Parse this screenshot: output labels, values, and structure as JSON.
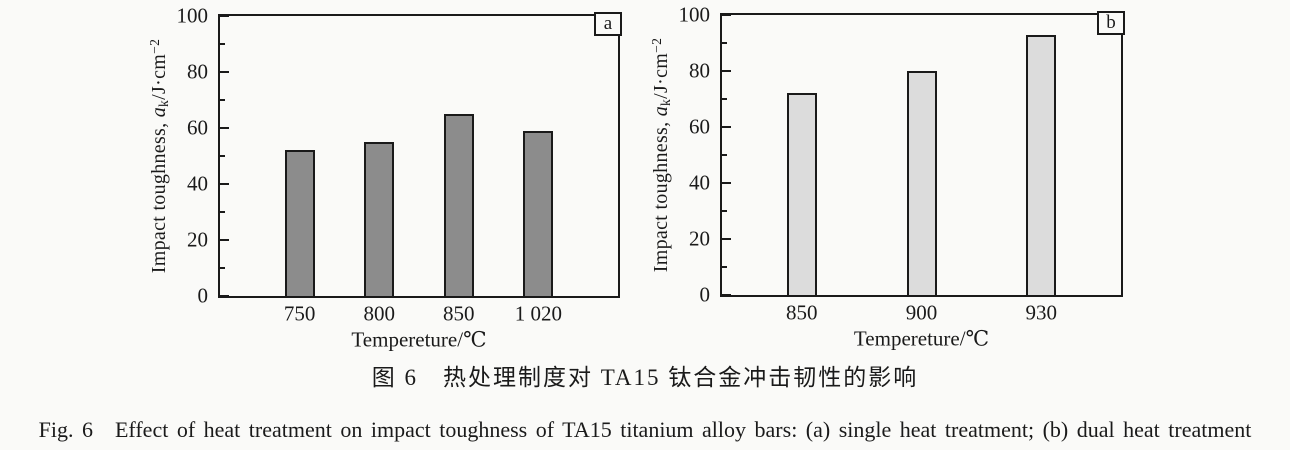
{
  "figure": {
    "caption_zh": "图 6　热处理制度对 TA15 钛合金冲击韧性的影响",
    "caption_en": "Fig. 6　Effect of heat treatment on impact toughness of TA15 titanium alloy bars: (a) single heat treatment; (b) dual heat treatment"
  },
  "colors": {
    "axis": "#1a1a1a",
    "background": "#fafaf8",
    "panel_a_bar": "#8c8c8c",
    "panel_b_bar": "#dcdcdc"
  },
  "chart_data": [
    {
      "type": "bar",
      "panel_label": "a",
      "title": "",
      "categories": [
        "750",
        "800",
        "850",
        "1 020"
      ],
      "values": [
        52,
        55,
        65,
        59
      ],
      "bar_color": "#8c8c8c",
      "xlabel": "Tempereture/℃",
      "ylabel": {
        "prefix": "Impact toughness, ",
        "italic_var": "a",
        "subscript": "k",
        "unit": "/J·cm",
        "superscript": "−2"
      },
      "ylim": [
        0,
        100
      ],
      "yticks_major": [
        0,
        20,
        40,
        60,
        80,
        100
      ],
      "yticks_minor": [
        10,
        30,
        50,
        70,
        90
      ],
      "grid": false,
      "legend": "none"
    },
    {
      "type": "bar",
      "panel_label": "b",
      "title": "",
      "categories": [
        "850",
        "900",
        "930"
      ],
      "values": [
        72,
        80,
        93
      ],
      "bar_color": "#dcdcdc",
      "xlabel": "Tempereture/℃",
      "ylabel": {
        "prefix": "Impact toughness, ",
        "italic_var": "a",
        "subscript": "k",
        "unit": "/J·cm",
        "superscript": "−2"
      },
      "ylim": [
        0,
        100
      ],
      "yticks_major": [
        0,
        20,
        40,
        60,
        80,
        100
      ],
      "yticks_minor": [
        10,
        30,
        50,
        70,
        90
      ],
      "grid": false,
      "legend": "none"
    }
  ]
}
